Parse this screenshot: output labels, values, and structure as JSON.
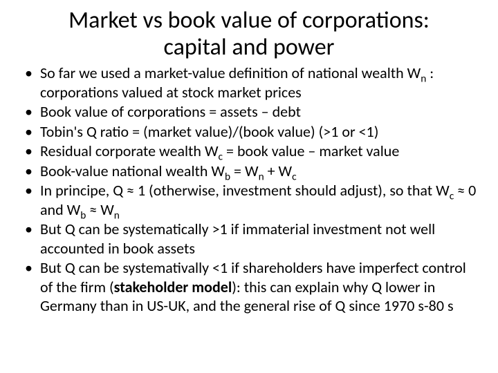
{
  "title": "Market vs book value of corporations: capital and power",
  "bullets": [
    {
      "html": "So far we used a market-value definition of national wealth W<span class=\"sub\">n</span> : corporations valued at stock market prices"
    },
    {
      "html": "Book value of corporations = assets – debt"
    },
    {
      "html": "Tobin's Q ratio = (market value)/(book value) (>1 or <1)"
    },
    {
      "html": "Residual corporate wealth W<span class=\"sub\">c</span> = book value – market value"
    },
    {
      "html": "Book-value national wealth W<span class=\"sub\">b</span> = W<span class=\"sub\">n</span> + W<span class=\"sub\">c</span>"
    },
    {
      "html": "In principe, Q ≈ 1 (otherwise, investment should adjust), so that W<span class=\"sub\">c</span> ≈ 0 and W<span class=\"sub\">b</span> ≈ W<span class=\"sub\">n</span>"
    },
    {
      "html": "But Q can be systematically >1 if immaterial investment not well accounted in book assets"
    },
    {
      "html": "But Q can be systemativally <1 if shareholders have imperfect control of the firm (<span class=\"bold\">stakeholder model</span>): this can explain why Q lower in Germany than in US-UK, and the general rise of Q since 1970 s-80 s"
    }
  ],
  "styling": {
    "background_color": "#ffffff",
    "text_color": "#000000",
    "title_fontsize": 34,
    "body_fontsize": 22,
    "font_family": "Calibri"
  }
}
